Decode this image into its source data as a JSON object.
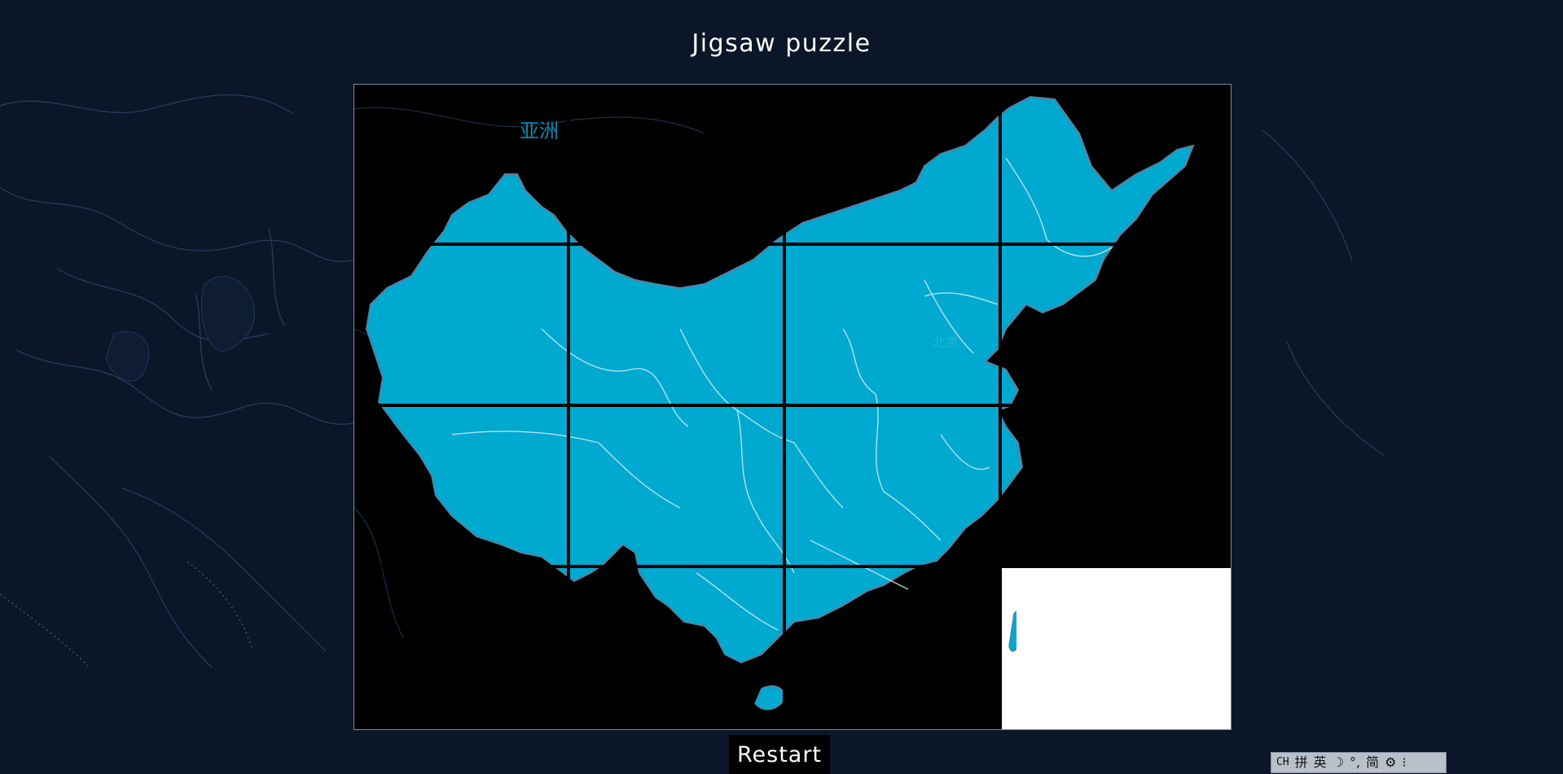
{
  "page": {
    "title": "Jigsaw puzzle"
  },
  "map": {
    "continent_label": "亚洲",
    "city_label": "北京"
  },
  "board": {
    "grid": {
      "rows": 4,
      "cols": 4
    },
    "blank_tile_color": "#ffffff",
    "tiles": [
      {
        "piece": 0,
        "slot": 0
      },
      {
        "piece": 1,
        "slot": 1
      },
      {
        "piece": 2,
        "slot": 2
      },
      {
        "piece": 3,
        "slot": 3
      },
      {
        "piece": 4,
        "slot": 4
      },
      {
        "piece": 5,
        "slot": 5
      },
      {
        "piece": 6,
        "slot": 6
      },
      {
        "piece": 7,
        "slot": 7
      },
      {
        "piece": 8,
        "slot": 8
      },
      {
        "piece": 9,
        "slot": 9
      },
      {
        "piece": 10,
        "slot": 10
      },
      {
        "piece": 11,
        "slot": 11
      },
      {
        "piece": 12,
        "slot": 12
      },
      {
        "piece": 13,
        "slot": 13
      },
      {
        "piece": 14,
        "slot": 14
      },
      {
        "piece": 15,
        "slot": 15,
        "blank": true
      }
    ]
  },
  "controls": {
    "restart_label": "Restart"
  },
  "ime_toolbar": {
    "items": [
      {
        "icon": "ch-indicator-icon",
        "label": "CH"
      },
      {
        "icon": "pinyin-icon",
        "label": "拼"
      },
      {
        "icon": "english-mode-icon",
        "label": "英"
      },
      {
        "icon": "half-width-icon",
        "label": "☽"
      },
      {
        "icon": "punctuation-icon",
        "label": "°,"
      },
      {
        "icon": "simplified-icon",
        "label": "简"
      },
      {
        "icon": "settings-icon",
        "label": "⚙"
      },
      {
        "icon": "more-icon",
        "label": "⁝"
      }
    ]
  },
  "colors": {
    "background": "#0b1628",
    "china_fill": "#00a9cf",
    "border_line": "#bfe9f4",
    "board_background": "#000000"
  }
}
